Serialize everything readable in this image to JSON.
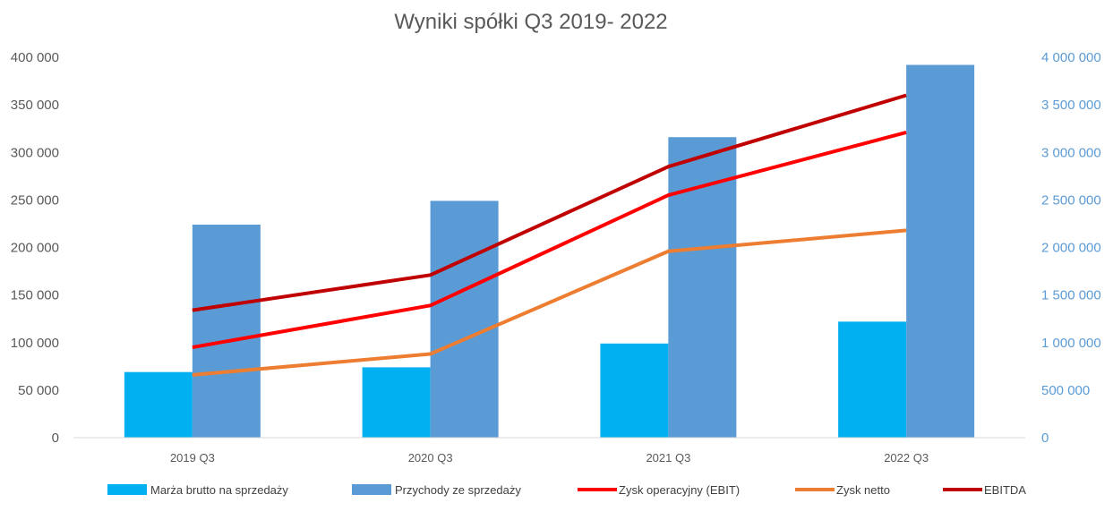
{
  "chart_data": {
    "type": "bar",
    "title": "Wyniki spółki Q3 2019- 2022",
    "categories": [
      "2019 Q3",
      "2020 Q3",
      "2021 Q3",
      "2022 Q3"
    ],
    "y_left": {
      "min": 0,
      "max": 400000,
      "ticks": [
        0,
        50000,
        100000,
        150000,
        200000,
        250000,
        300000,
        350000,
        400000
      ],
      "tick_labels": [
        "0",
        "50 000",
        "100 000",
        "150 000",
        "200 000",
        "250 000",
        "300 000",
        "350 000",
        "400 000"
      ]
    },
    "y_right": {
      "min": 0,
      "max": 4000000,
      "ticks": [
        0,
        500000,
        1000000,
        1500000,
        2000000,
        2500000,
        3000000,
        3500000,
        4000000
      ],
      "tick_labels": [
        "0",
        "500 000",
        "1 000 000",
        "1 500 000",
        "2 000 000",
        "2 500 000",
        "3 000 000",
        "3 500 000",
        "4 000 000"
      ]
    },
    "grid": false,
    "legend_position": "bottom",
    "series": [
      {
        "name": "Marża brutto na sprzedaży",
        "kind": "bar",
        "axis": "left",
        "color": "#00b0f0",
        "values": [
          69000,
          74000,
          99000,
          122000
        ]
      },
      {
        "name": "Przychody ze sprzedaży",
        "kind": "bar",
        "axis": "right",
        "color": "#5b9bd5",
        "values": [
          2240000,
          2490000,
          3160000,
          3920000
        ]
      },
      {
        "name": "Zysk operacyjny (EBIT)",
        "kind": "line",
        "axis": "left",
        "color": "#ff0000",
        "values": [
          95000,
          139000,
          255000,
          321000
        ]
      },
      {
        "name": "Zysk netto",
        "kind": "line",
        "axis": "left",
        "color": "#ed7d31",
        "values": [
          66000,
          88000,
          196000,
          218000
        ]
      },
      {
        "name": "EBITDA",
        "kind": "line",
        "axis": "left",
        "color": "#c00000",
        "values": [
          134000,
          171000,
          285000,
          360000
        ]
      }
    ]
  }
}
